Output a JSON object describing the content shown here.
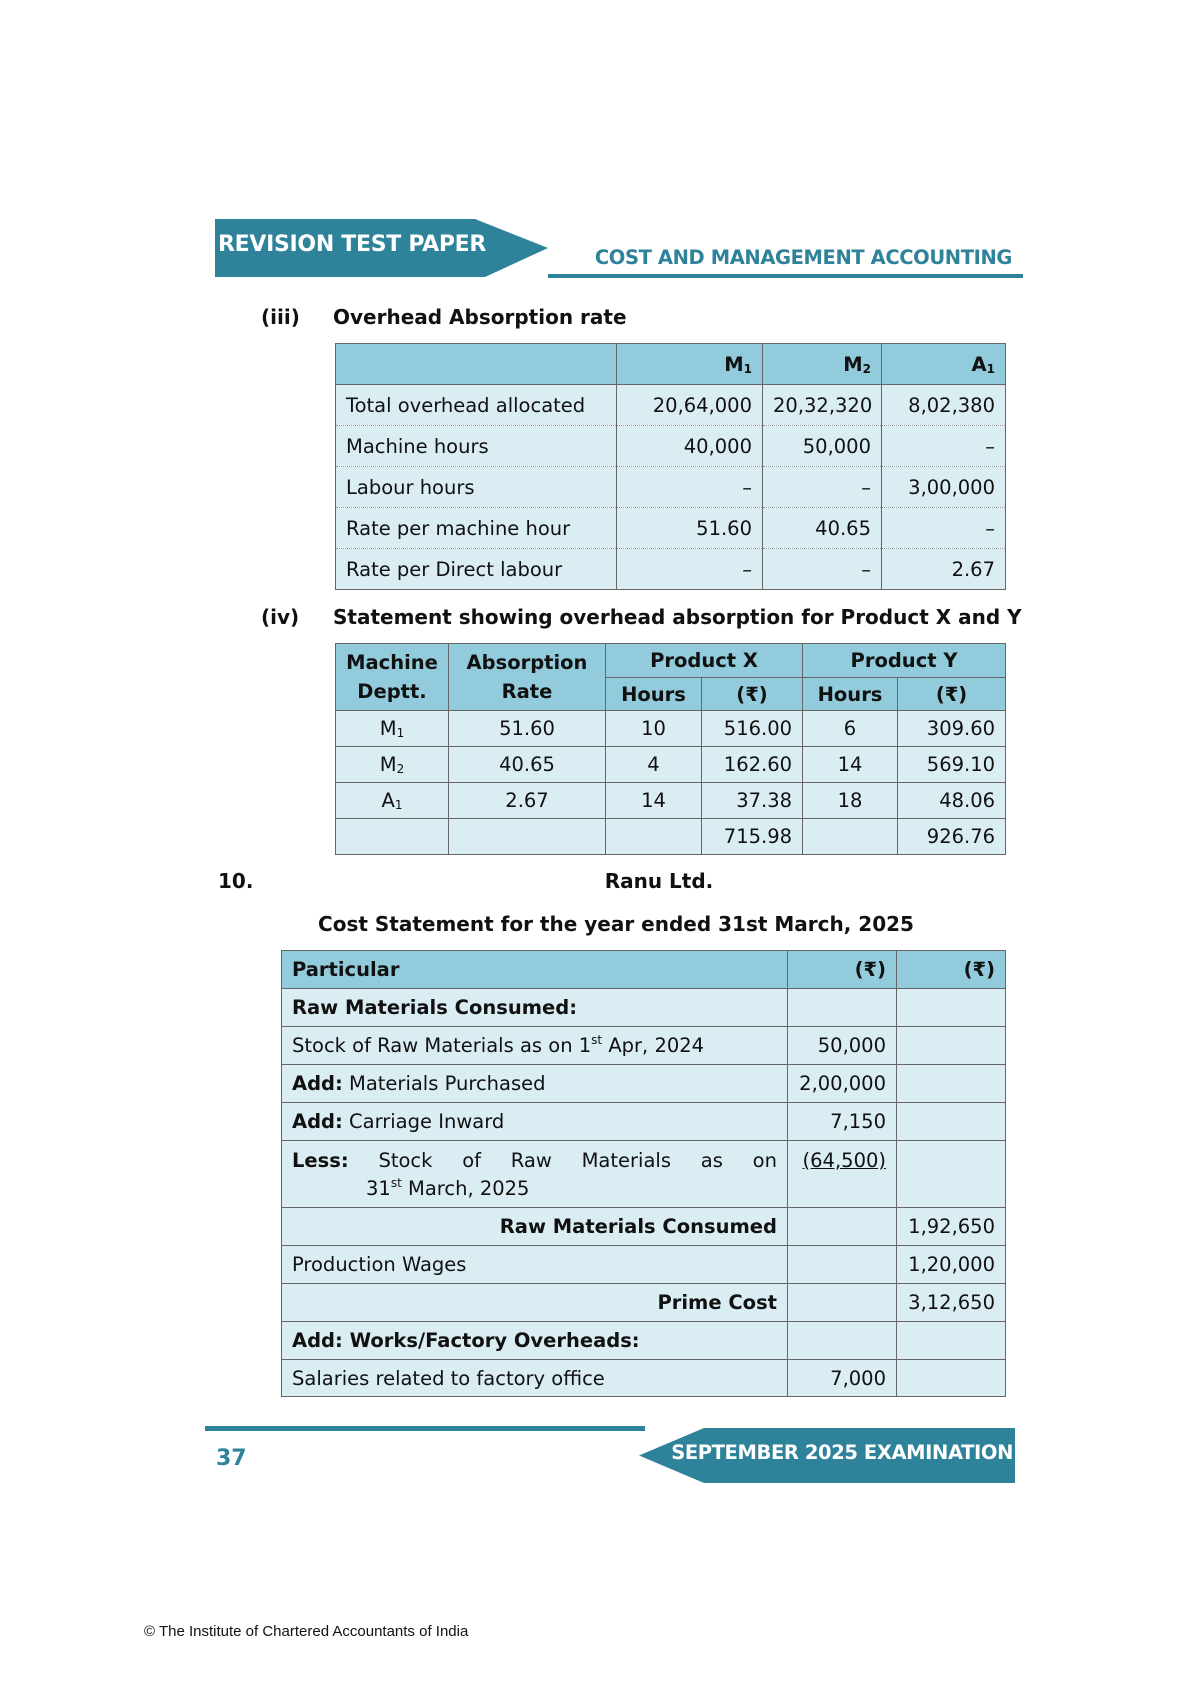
{
  "header": {
    "left_title": "REVISION TEST PAPER",
    "right_title": "COST AND MANAGEMENT ACCOUNTING"
  },
  "colors": {
    "brand": "#2e8299",
    "table_header": "#92ccdc",
    "table_row": "#daedf3"
  },
  "section_iii": {
    "number": "(iii)",
    "title": "Overhead Absorption rate",
    "columns": [
      "M",
      "1",
      "M",
      "2",
      "A",
      "1"
    ],
    "rows": [
      {
        "label": "Total overhead allocated",
        "m1": "20,64,000",
        "m2": "20,32,320",
        "a1": "8,02,380"
      },
      {
        "label": "Machine hours",
        "m1": "40,000",
        "m2": "50,000",
        "a1": "–"
      },
      {
        "label": "Labour hours",
        "m1": "–",
        "m2": "–",
        "a1": "3,00,000"
      },
      {
        "label": "Rate per machine hour",
        "m1": "51.60",
        "m2": "40.65",
        "a1": "–"
      },
      {
        "label": "Rate per Direct labour",
        "m1": "–",
        "m2": "–",
        "a1": "2.67"
      }
    ]
  },
  "section_iv": {
    "number": "(iv)",
    "title": "Statement showing overhead absorption for Product X and Y",
    "headers": {
      "dept_1": "Machine",
      "dept_2": "Deptt.",
      "rate_1": "Absorption",
      "rate_2": "Rate",
      "product_x": "Product X",
      "product_y": "Product Y",
      "hours": "Hours",
      "amount": "(₹)"
    },
    "rows": [
      {
        "dept": "M",
        "sub": "1",
        "rate": "51.60",
        "x_hours": "10",
        "x_amt": "516.00",
        "y_hours": "6",
        "y_amt": "309.60"
      },
      {
        "dept": "M",
        "sub": "2",
        "rate": "40.65",
        "x_hours": "4",
        "x_amt": "162.60",
        "y_hours": "14",
        "y_amt": "569.10"
      },
      {
        "dept": "A",
        "sub": "1",
        "rate": "2.67",
        "x_hours": "14",
        "x_amt": "37.38",
        "y_hours": "18",
        "y_amt": "48.06"
      }
    ],
    "totals": {
      "x_amt": "715.98",
      "y_amt": "926.76"
    }
  },
  "question_10": {
    "number": "10.",
    "company": "Ranu Ltd.",
    "title": "Cost Statement for the year ended 31st March, 2025",
    "headers": {
      "particular": "Particular",
      "col1": "(₹)",
      "col2": "(₹)"
    },
    "rows": {
      "rm_heading": "Raw Materials Consumed:",
      "opening_stock": {
        "text_a": "Stock of Raw Materials as on 1",
        "sup": "st",
        "text_b": " Apr, 2024",
        "col1": "50,000"
      },
      "purchased": {
        "prefix": "Add:",
        "text": " Materials Purchased",
        "col1": "2,00,000"
      },
      "carriage": {
        "prefix": "Add:",
        "text": " Carriage Inward",
        "col1": "7,150"
      },
      "closing_stock": {
        "prefix": "Less:",
        "words": [
          "Stock",
          "of",
          "Raw",
          "Materials",
          "as",
          "on"
        ],
        "line2_a": "31",
        "sup": "st",
        "line2_b": " March, 2025",
        "col1": "(64,500)"
      },
      "rm_consumed": {
        "text": "Raw Materials Consumed",
        "col2": "1,92,650"
      },
      "wages": {
        "text": "Production Wages",
        "col2": "1,20,000"
      },
      "prime_cost": {
        "text": "Prime Cost",
        "col2": "3,12,650"
      },
      "works_heading": "Add: Works/Factory Overheads:",
      "salaries": {
        "text": "Salaries related to factory office",
        "col1": "7,000"
      }
    }
  },
  "footer": {
    "page_number": "37",
    "exam": "SEPTEMBER 2025 EXAMINATION",
    "copyright": "© The Institute of Chartered Accountants of India"
  }
}
